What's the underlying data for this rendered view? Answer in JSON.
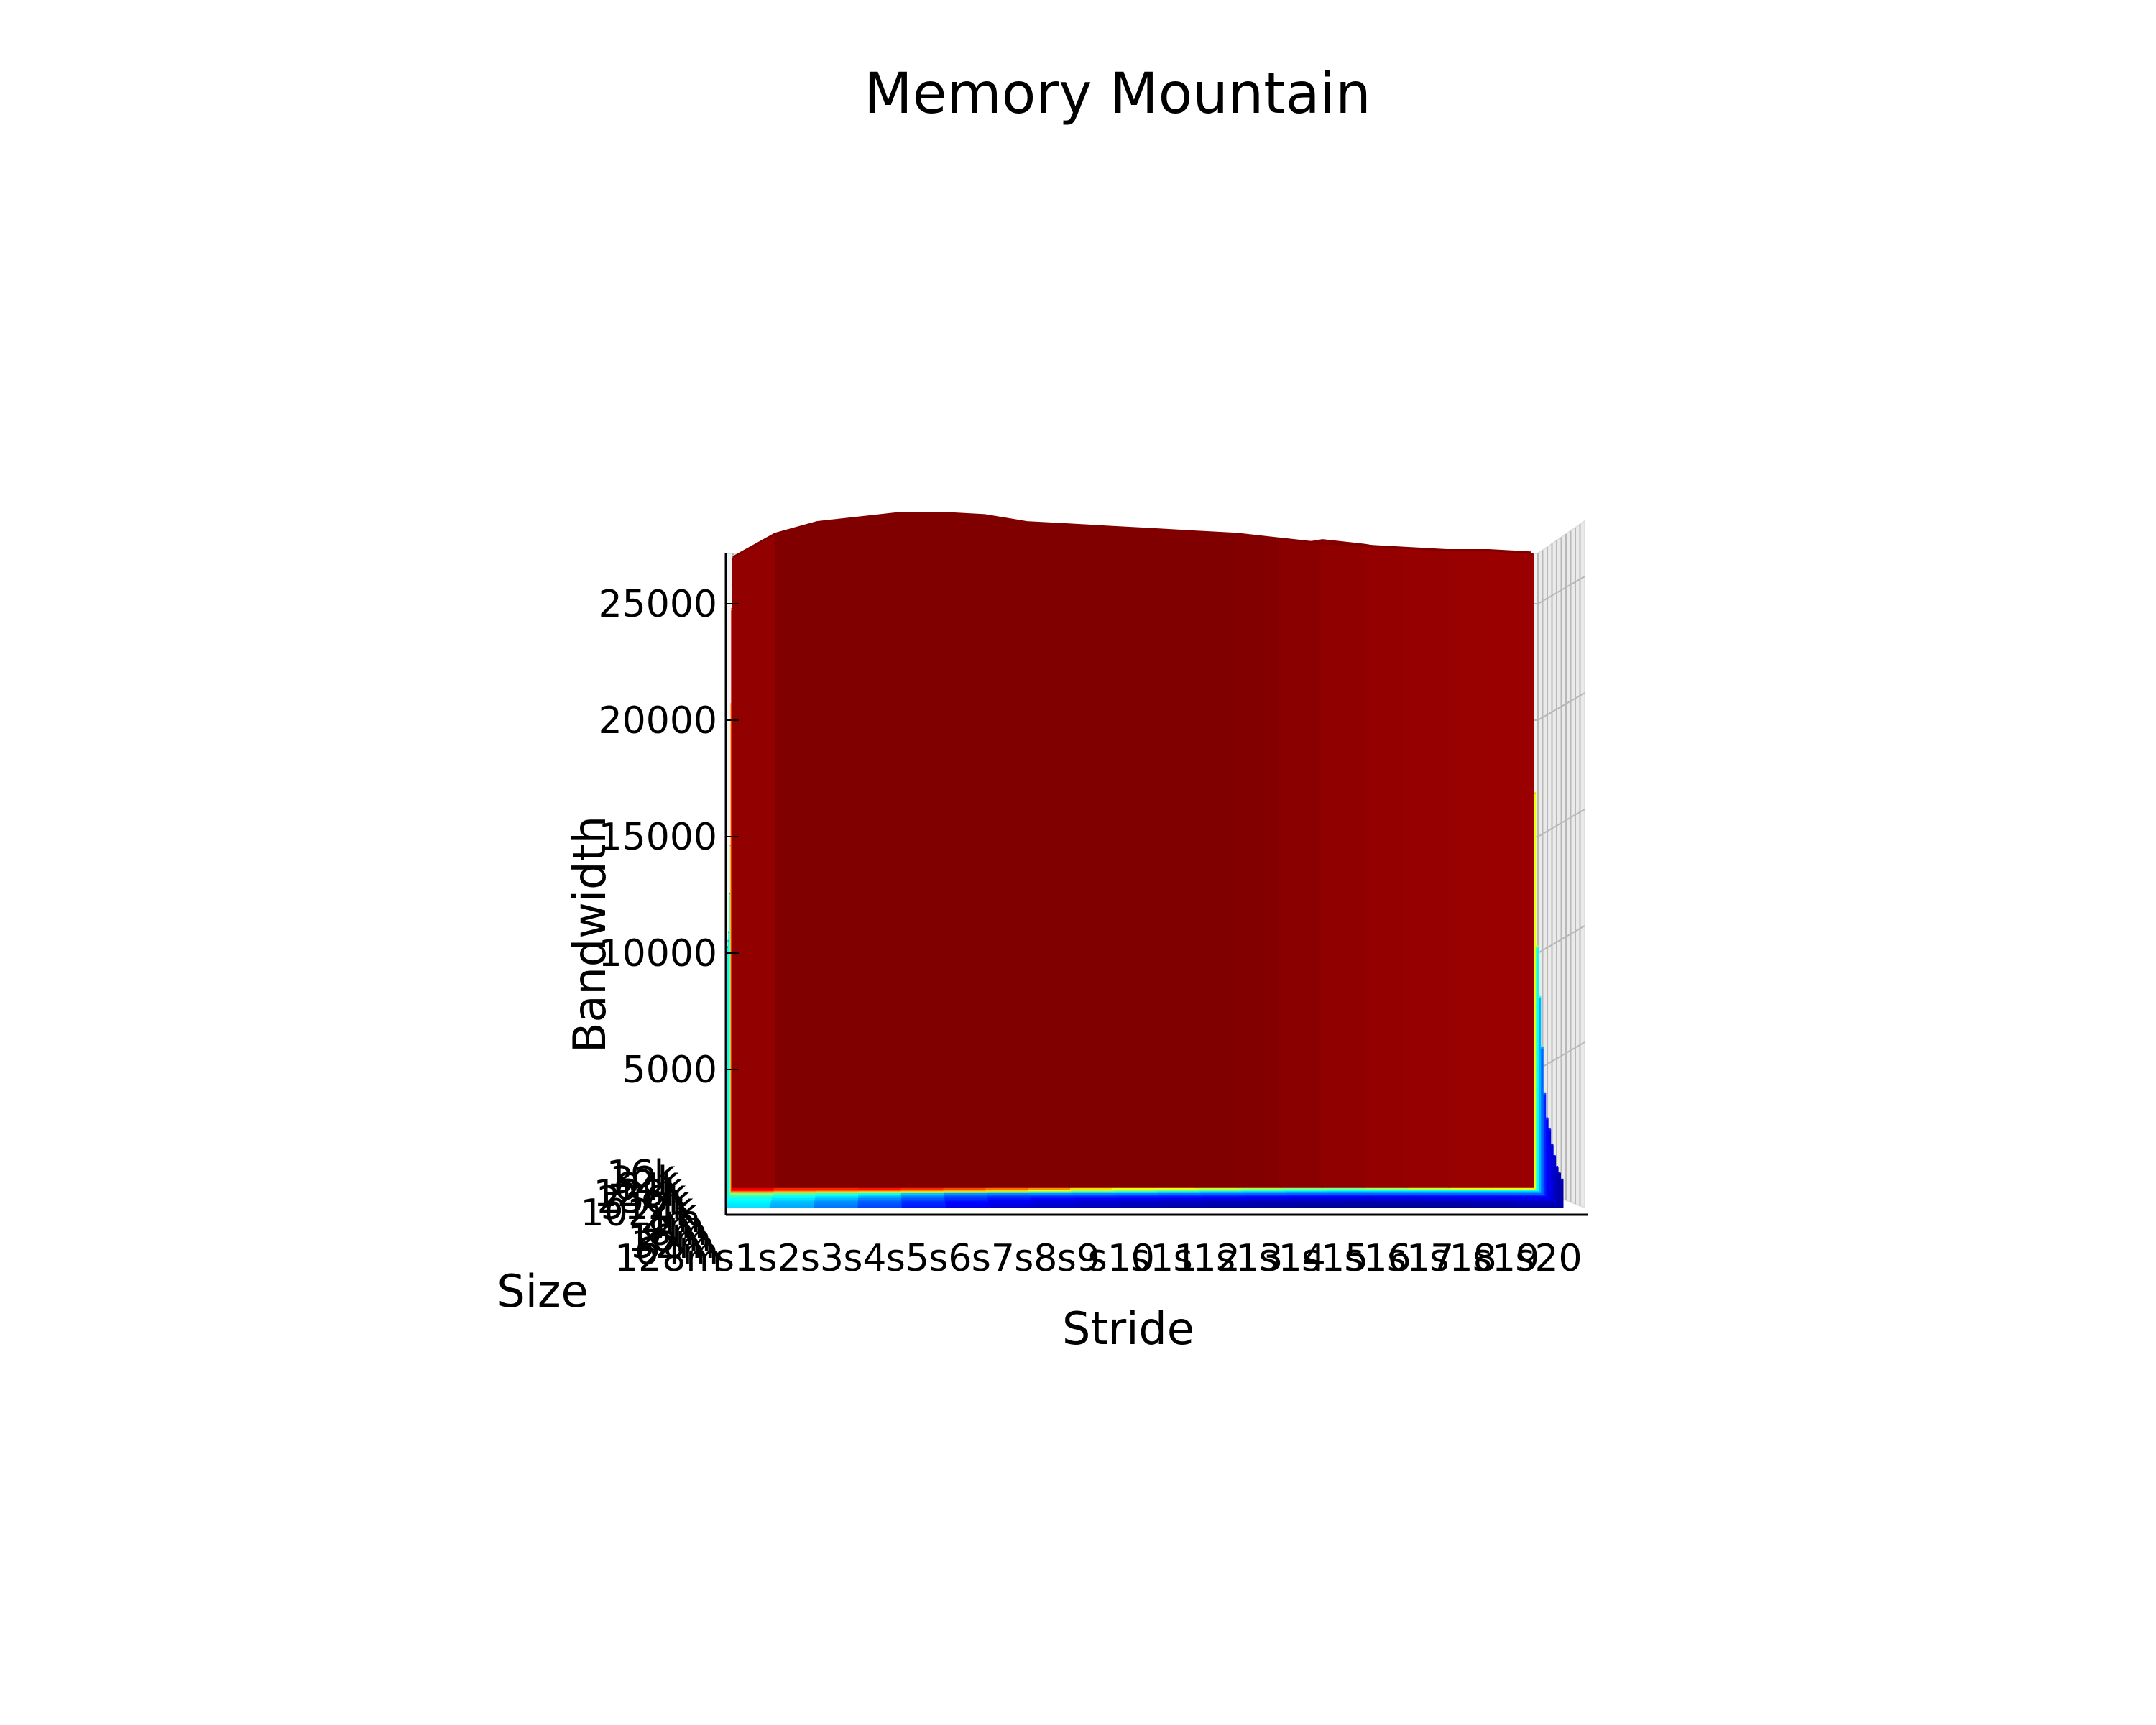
{
  "chart_data": {
    "type": "surface3d",
    "title": "Memory Mountain",
    "xlabel": "Stride",
    "ylabel": "Size",
    "zlabel": "Bandwidth",
    "colormap": "jet",
    "strides": [
      "s1",
      "s2",
      "s3",
      "s4",
      "s5",
      "s6",
      "s7",
      "s8",
      "s9",
      "s10",
      "s11",
      "s12",
      "s13",
      "s14",
      "s15",
      "s16",
      "s17",
      "s18",
      "s19",
      "s20"
    ],
    "sizes": [
      "128m",
      "64m",
      "32m",
      "16m",
      "8m",
      "4m",
      "2m",
      "1024k",
      "512k",
      "256k",
      "128k",
      "64k",
      "32k",
      "16k"
    ],
    "zticks": [
      5000,
      10000,
      15000,
      20000,
      25000
    ],
    "zlim": [
      0,
      28000
    ],
    "series": [
      {
        "name": "16k",
        "values": [
          27000,
          28000,
          28500,
          28700,
          28900,
          28900,
          28800,
          28500,
          28400,
          28300,
          28200,
          28100,
          28000,
          27800,
          27600,
          27500,
          27400,
          27300,
          27300,
          27200
        ]
      },
      {
        "name": "32k",
        "values": [
          27000,
          27800,
          28300,
          28600,
          28700,
          28700,
          28600,
          28300,
          28400,
          28300,
          28200,
          28000,
          27800,
          27500,
          27800,
          27600,
          27300,
          27200,
          27300,
          27200
        ]
      },
      {
        "name": "64k",
        "values": [
          26000,
          24000,
          23000,
          24200,
          23800,
          23000,
          22000,
          21000,
          20000,
          17000,
          17500,
          16500,
          15500,
          14500,
          13500,
          14500,
          15500,
          16500,
          17000,
          17000
        ]
      },
      {
        "name": "128k",
        "values": [
          25000,
          23000,
          22000,
          22000,
          21500,
          20000,
          19500,
          18000,
          16000,
          15000,
          14000,
          13000,
          12500,
          11500,
          11000,
          10500,
          10500,
          10500,
          10500,
          10500
        ]
      },
      {
        "name": "256k",
        "values": [
          21000,
          19500,
          18500,
          18500,
          17500,
          16500,
          15000,
          13500,
          12000,
          10800,
          10400,
          9600,
          9200,
          8800,
          8400,
          8400,
          8400,
          8500,
          8500,
          8400
        ]
      },
      {
        "name": "512k",
        "values": [
          15000,
          13500,
          12000,
          11500,
          10000,
          8000,
          7200,
          7400,
          7400,
          7000,
          7000,
          6500,
          6400,
          6300,
          6100,
          6200,
          6300,
          6200,
          6300,
          6300
        ]
      },
      {
        "name": "1024k",
        "values": [
          13000,
          12000,
          11000,
          10200,
          8500,
          6800,
          5800,
          5600,
          5400,
          5200,
          5000,
          4800,
          4600,
          4400,
          4200,
          4200,
          4300,
          4300,
          4400,
          4400
        ]
      },
      {
        "name": "2m",
        "values": [
          12000,
          11000,
          10000,
          9000,
          7500,
          6000,
          5000,
          4600,
          4300,
          4100,
          4000,
          3800,
          3600,
          3400,
          3200,
          3200,
          3300,
          3300,
          3400,
          3400
        ]
      },
      {
        "name": "4m",
        "values": [
          11500,
          10300,
          9200,
          8000,
          6500,
          5200,
          4300,
          3800,
          3500,
          3300,
          3100,
          2900,
          2700,
          2600,
          2500,
          2500,
          2600,
          2700,
          2900,
          3000
        ]
      },
      {
        "name": "8m",
        "values": [
          11200,
          9800,
          8500,
          7300,
          5800,
          4600,
          3700,
          3200,
          2800,
          2600,
          2400,
          2200,
          2000,
          1900,
          1800,
          1800,
          1900,
          2000,
          2200,
          2400
        ]
      },
      {
        "name": "16m",
        "values": [
          11000,
          9500,
          8100,
          6800,
          5400,
          4200,
          3300,
          2800,
          2400,
          2100,
          1900,
          1700,
          1500,
          1400,
          1300,
          1300,
          1400,
          1500,
          1700,
          2000
        ]
      },
      {
        "name": "32m",
        "values": [
          10800,
          9200,
          7800,
          6500,
          5100,
          3900,
          3000,
          2500,
          2100,
          1800,
          1600,
          1400,
          1200,
          1100,
          1000,
          1000,
          1000,
          1100,
          1300,
          1600
        ]
      },
      {
        "name": "64m",
        "values": [
          10700,
          9000,
          7600,
          6300,
          4900,
          3700,
          2800,
          2300,
          1900,
          1600,
          1400,
          1200,
          1000,
          900,
          800,
          800,
          800,
          900,
          1100,
          1400
        ]
      },
      {
        "name": "128m",
        "values": [
          10600,
          8800,
          7400,
          6100,
          4700,
          3500,
          2600,
          2100,
          1700,
          1400,
          1200,
          1000,
          800,
          700,
          600,
          600,
          600,
          700,
          900,
          1200
        ]
      }
    ]
  }
}
